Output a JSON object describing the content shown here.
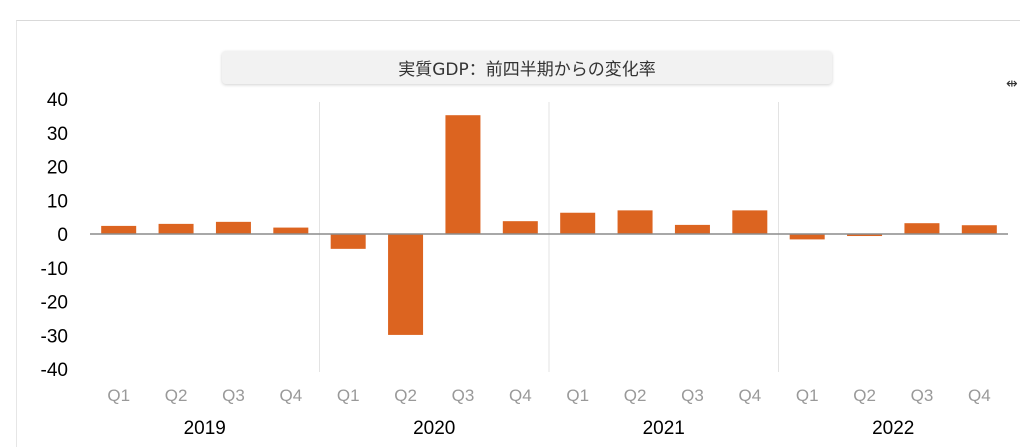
{
  "chart_data": {
    "type": "bar",
    "title": "実質GDP：前四半期からの変化率",
    "categories": [
      "Q1",
      "Q2",
      "Q3",
      "Q4",
      "Q1",
      "Q2",
      "Q3",
      "Q4",
      "Q1",
      "Q2",
      "Q3",
      "Q4",
      "Q1",
      "Q2",
      "Q3",
      "Q4"
    ],
    "groups": [
      "2019",
      "2020",
      "2021",
      "2022"
    ],
    "values": [
      2.4,
      3.0,
      3.6,
      1.9,
      -4.4,
      -29.9,
      35.2,
      3.8,
      6.3,
      7.0,
      2.7,
      7.0,
      -1.6,
      -0.6,
      3.2,
      2.6
    ],
    "ylim": [
      -40,
      40
    ],
    "yticks": [
      40,
      30,
      20,
      10,
      0,
      -10,
      -20,
      -30,
      -40
    ],
    "bar_color": "#dc6420",
    "xlabel": "",
    "ylabel": ""
  },
  "resize_icon": "resize-icon"
}
